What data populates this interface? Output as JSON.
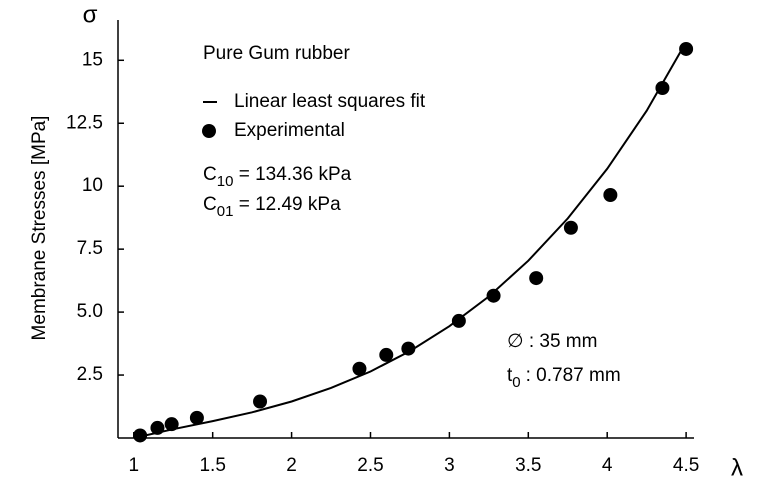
{
  "chart_data": {
    "type": "scatter",
    "y_symbol": "σ",
    "x_symbol": "λ",
    "ylabel": "Membrane Stresses [MPa]",
    "annotations": {
      "material": "Pure Gum rubber",
      "c10": {
        "symbol": "C",
        "sub": "10",
        "text": " = 134.36 kPa"
      },
      "c01": {
        "symbol": "C",
        "sub": "01",
        "text": " = 12.49 kPa"
      },
      "diameter": "∅  : 35 mm",
      "thickness": {
        "symbol": "t",
        "sub": "0",
        "text": ": 0.787 mm"
      }
    },
    "xlim": [
      0.9,
      4.55
    ],
    "ylim": [
      0,
      16.6
    ],
    "xticks": [
      1,
      1.5,
      2,
      2.5,
      3,
      3.5,
      4,
      4.5
    ],
    "yticks": [
      2.5,
      {
        "value": 5,
        "label": "5.0"
      },
      7.5,
      10,
      12.5,
      15
    ],
    "series": [
      {
        "name": "Linear least squares fit",
        "kind": "line",
        "color": "#000",
        "x": [
          1,
          1.25,
          1.5,
          1.75,
          2,
          2.25,
          2.5,
          2.75,
          3,
          3.25,
          3.5,
          3.75,
          4,
          4.25,
          4.47
        ],
        "values": [
          0,
          0.35,
          0.67,
          1.02,
          1.45,
          1.99,
          2.64,
          3.45,
          4.44,
          5.62,
          7.04,
          8.72,
          10.69,
          13.0,
          15.4
        ]
      },
      {
        "name": "Experimental",
        "kind": "points",
        "color": "#000",
        "x": [
          1.04,
          1.15,
          1.24,
          1.4,
          1.8,
          2.43,
          2.6,
          2.74,
          3.06,
          3.28,
          3.55,
          3.77,
          4.02,
          4.35,
          4.5
        ],
        "values": [
          0.1,
          0.4,
          0.55,
          0.8,
          1.45,
          2.75,
          3.3,
          3.55,
          4.65,
          5.65,
          6.35,
          8.35,
          9.65,
          13.9,
          15.45
        ]
      }
    ]
  }
}
